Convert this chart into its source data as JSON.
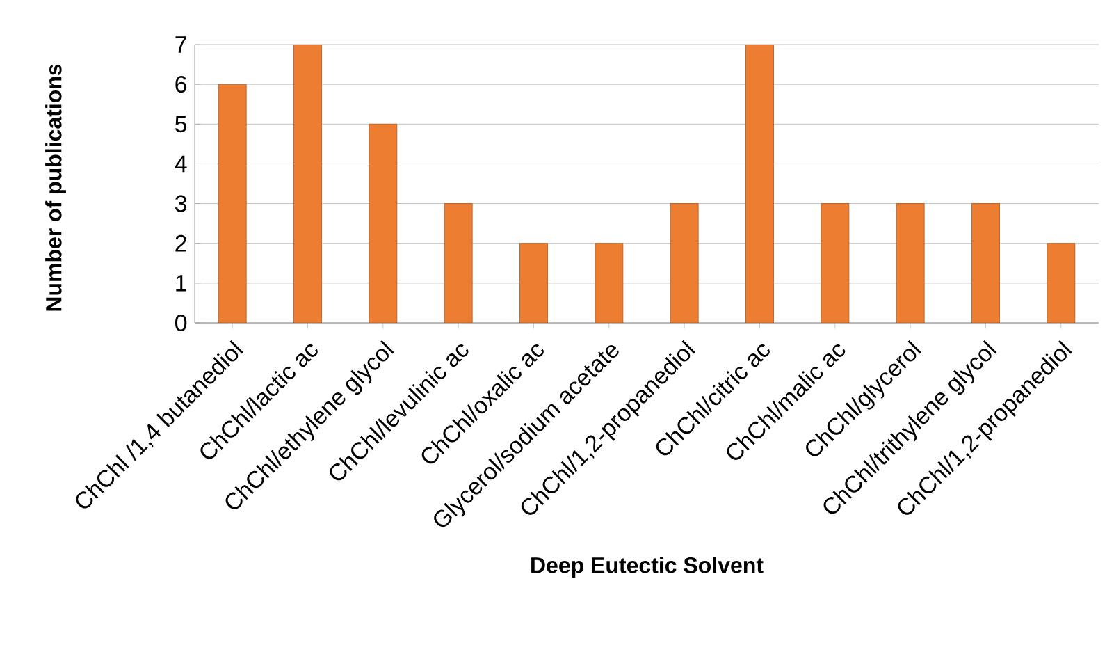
{
  "chart_data": {
    "type": "bar",
    "xlabel": "Deep Eutectic Solvent",
    "ylabel": "Number of publications",
    "categories": [
      "ChChl /1,4 butanediol",
      "ChChl/lactic ac",
      "ChChl/ethylene glycol",
      "ChChl/levulinic ac",
      "ChChl/oxalic ac",
      "Glycerol/sodium acetate",
      "ChChl/1,2-propanediol",
      "ChChl/citric ac",
      "ChChl/malic ac",
      "ChChl/glycerol",
      "ChChl/trithylene glycol",
      "ChChl/1,2-propanediol"
    ],
    "values": [
      6,
      7,
      5,
      3,
      2,
      2,
      3,
      7,
      3,
      3,
      3,
      2
    ],
    "color": "#ed7d31",
    "ylim": [
      0,
      7
    ],
    "yticks": [
      0,
      1,
      2,
      3,
      4,
      5,
      6,
      7
    ],
    "grid": "y"
  }
}
